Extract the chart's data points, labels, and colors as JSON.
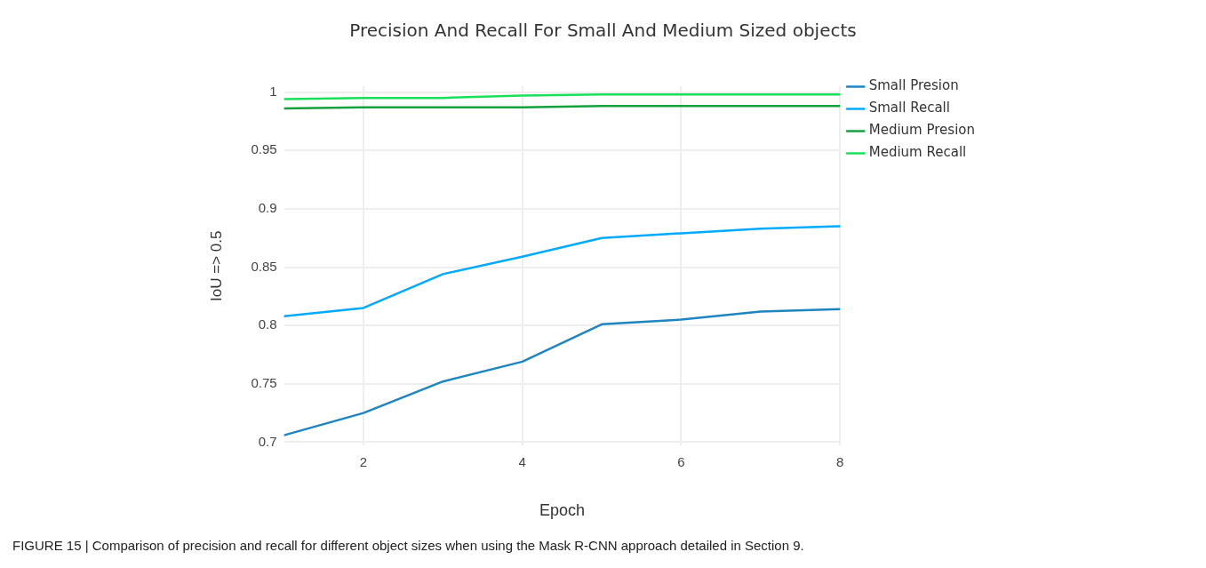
{
  "chart_data": {
    "type": "line",
    "title": "Precision And Recall For Small And Medium Sized objects",
    "xlabel": "Epoch",
    "ylabel": "IoU => 0.5",
    "x": [
      1,
      2,
      3,
      4,
      5,
      6,
      7,
      8
    ],
    "series": [
      {
        "name": "Small Presion",
        "color": "#1f85c0",
        "values": [
          0.706,
          0.725,
          0.752,
          0.769,
          0.801,
          0.805,
          0.812,
          0.814
        ]
      },
      {
        "name": "Small Recall",
        "color": "#00aaff",
        "values": [
          0.808,
          0.815,
          0.844,
          0.859,
          0.875,
          0.879,
          0.883,
          0.885
        ]
      },
      {
        "name": "Medium Presion",
        "color": "#14a03c",
        "values": [
          0.986,
          0.987,
          0.987,
          0.987,
          0.988,
          0.988,
          0.988,
          0.988
        ]
      },
      {
        "name": "Medium Recall",
        "color": "#19e05a",
        "values": [
          0.994,
          0.995,
          0.995,
          0.997,
          0.998,
          0.998,
          0.998,
          0.998
        ]
      }
    ],
    "xlim": [
      1,
      8
    ],
    "xticks": [
      2,
      4,
      6,
      8
    ],
    "ylim": [
      0.697,
      1.005
    ],
    "yticks": [
      0.7,
      0.75,
      0.8,
      0.85,
      0.9,
      0.95,
      1
    ],
    "grid": true,
    "legend": "top right",
    "marker": "none",
    "line_style": "solid",
    "annotations": [
      "FIGURE 15 | Comparison of precision and recall for different object sizes when using the Mask R-CNN approach detailed in Section 9."
    ]
  }
}
